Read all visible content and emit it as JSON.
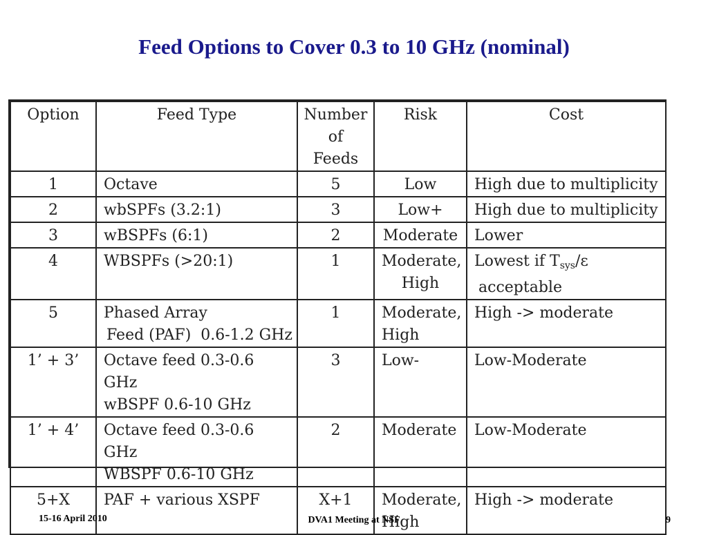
{
  "title": "Feed Options to Cover 0.3 to 10 GHz (nominal)",
  "table": {
    "headers": [
      "Option",
      "Feed Type",
      "Number of Feeds",
      "Risk",
      "Cost"
    ],
    "rows": [
      {
        "option": "1",
        "feed_type": "Octave",
        "feed_type_2": "",
        "number": "5",
        "risk": "Low",
        "risk_2": "",
        "cost": "High due to multiplicity",
        "cost_2": ""
      },
      {
        "option": "2",
        "feed_type": "wbSPFs (3.2:1)",
        "feed_type_2": "",
        "number": "3",
        "risk": "Low+",
        "risk_2": "",
        "cost": "High due to multiplicity",
        "cost_2": ""
      },
      {
        "option": "3",
        "feed_type": "wBSPFs (6:1)",
        "feed_type_2": "",
        "number": "2",
        "risk": "Moderate",
        "risk_2": "",
        "cost": "Lower",
        "cost_2": ""
      },
      {
        "option": "4",
        "feed_type": "WBSPFs (>20:1)",
        "feed_type_2": "",
        "number": "1",
        "risk": "Moderate,",
        "risk_2": "High",
        "cost": "Lowest if T",
        "cost_sub": "sys",
        "cost_after": "/ε",
        "cost_2": "acceptable"
      },
      {
        "option": "5",
        "feed_type": "Phased Array",
        "feed_type_2": "Feed (PAF)  0.6-1.2 GHz",
        "number": "1",
        "risk": "Moderate,",
        "risk_2": "High",
        "cost": "High -> moderate",
        "cost_2": ""
      },
      {
        "option": "1’ + 3’",
        "feed_type": "Octave feed 0.3-0.6 GHz",
        "feed_type_2": "wBSPF 0.6-10 GHz",
        "number": "3",
        "risk": "Low-",
        "risk_2": "",
        "cost": "Low-Moderate",
        "cost_2": ""
      },
      {
        "option": "1’ + 4’",
        "feed_type": "Octave feed 0.3-0.6 GHz",
        "feed_type_2": "WBSPF 0.6-10 GHz",
        "number": "2",
        "risk": "Moderate",
        "risk_2": "",
        "cost": "Low-Moderate",
        "cost_2": ""
      },
      {
        "option": "5+X",
        "feed_type": "PAF + various XSPF",
        "feed_type_2": "",
        "number": "X+1",
        "risk": "Moderate,",
        "risk_2": "High",
        "cost": "High -> moderate",
        "cost_2": ""
      }
    ]
  },
  "footer": {
    "date": "15-16 April 2010",
    "meeting": "DVA1 Meeting at NSF",
    "page": "9"
  }
}
